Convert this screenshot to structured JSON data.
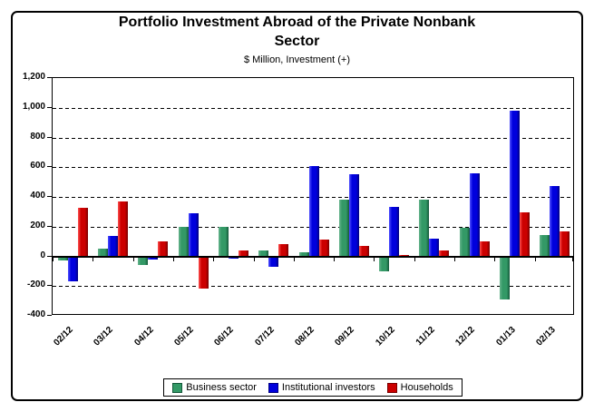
{
  "chart": {
    "title_line1": "Portfolio Investment Abroad of the Private Nonbank",
    "title_line2": "Sector",
    "subtitle": "$ Million, Investment (+)"
  },
  "chart_data": {
    "type": "bar",
    "title": "Portfolio Investment Abroad of the Private Nonbank Sector",
    "subtitle": "$ Million, Investment (+)",
    "categories": [
      "02/12",
      "03/12",
      "04/12",
      "05/12",
      "06/12",
      "07/12",
      "08/12",
      "09/12",
      "10/12",
      "11/12",
      "12/12",
      "01/13",
      "02/13"
    ],
    "series": [
      {
        "name": "Business sector",
        "color": "#339966",
        "color_light": "#66b38c",
        "color_dark": "#14583a",
        "values": [
          -30,
          50,
          -60,
          200,
          200,
          40,
          25,
          380,
          -100,
          380,
          190,
          -290,
          145
        ]
      },
      {
        "name": "Institutional investors",
        "color": "#0000dd",
        "color_light": "#5050ff",
        "color_dark": "#000080",
        "values": [
          -170,
          140,
          -20,
          290,
          -15,
          -70,
          610,
          550,
          330,
          120,
          560,
          980,
          475
        ]
      },
      {
        "name": "Households",
        "color": "#cc0000",
        "color_light": "#ff5050",
        "color_dark": "#7a0000",
        "values": [
          325,
          370,
          100,
          -215,
          40,
          80,
          110,
          70,
          10,
          40,
          100,
          295,
          165
        ]
      }
    ],
    "ylim": [
      -400,
      1200
    ],
    "ytick_values": [
      1200,
      1000,
      800,
      600,
      400,
      200,
      0,
      -200,
      -400
    ],
    "ytick_labels": [
      "1,200",
      "1,000",
      "800",
      "600",
      "400",
      "200",
      "0",
      "-200",
      "-400"
    ],
    "grid": "horizontal-dashed",
    "legend_position": "bottom",
    "xlabel": "",
    "ylabel": ""
  }
}
